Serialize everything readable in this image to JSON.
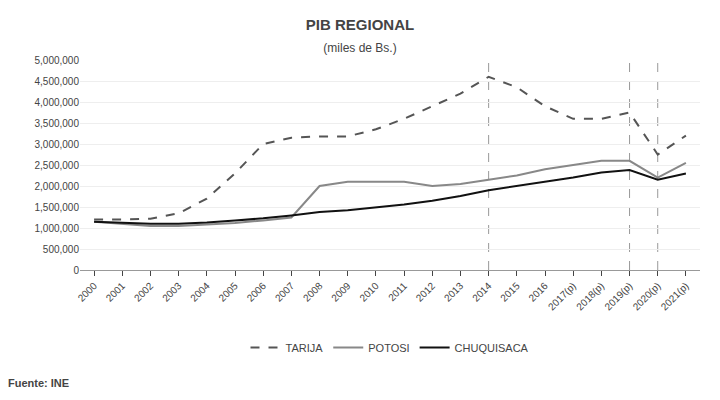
{
  "chart_data": {
    "type": "line",
    "title": "PIB REGIONAL",
    "subtitle": "(miles de Bs.)",
    "source": "Fuente: INE",
    "categories": [
      "2000",
      "2001",
      "2002",
      "2003",
      "2004",
      "2005",
      "2006",
      "2007",
      "2008",
      "2009",
      "2010",
      "2011",
      "2012",
      "2013",
      "2014",
      "2015",
      "2016",
      "2017(p)",
      "2018(p)",
      "2019(p)",
      "2020(p)",
      "2021(p)"
    ],
    "series": [
      {
        "name": "TARIJA",
        "color": "#555555",
        "line_style": "dashed",
        "values": [
          1200000,
          1200000,
          1220000,
          1350000,
          1700000,
          2300000,
          3000000,
          3150000,
          3180000,
          3180000,
          3350000,
          3600000,
          3900000,
          4200000,
          4600000,
          4350000,
          3900000,
          3600000,
          3600000,
          3750000,
          2750000,
          3200000
        ]
      },
      {
        "name": "POTOSI",
        "color": "#888888",
        "line_style": "solid",
        "values": [
          1150000,
          1100000,
          1050000,
          1050000,
          1080000,
          1120000,
          1180000,
          1250000,
          2000000,
          2100000,
          2100000,
          2100000,
          2000000,
          2050000,
          2150000,
          2250000,
          2400000,
          2500000,
          2600000,
          2600000,
          2200000,
          2550000
        ]
      },
      {
        "name": "CHUQUISACA",
        "color": "#111111",
        "line_style": "solid",
        "values": [
          1150000,
          1130000,
          1100000,
          1100000,
          1130000,
          1180000,
          1230000,
          1300000,
          1380000,
          1420000,
          1490000,
          1560000,
          1650000,
          1760000,
          1900000,
          2000000,
          2100000,
          2200000,
          2320000,
          2380000,
          2150000,
          2300000
        ]
      }
    ],
    "vlines": [
      "2014",
      "2019(p)",
      "2020(p)"
    ],
    "ylim": [
      0,
      5000000
    ],
    "yticks": [
      0,
      {
        "value": 500000,
        "label": "500,000"
      },
      {
        "value": 1000000,
        "label": "1,000,000"
      },
      {
        "value": 1500000,
        "label": "1,500,000"
      },
      {
        "value": 2000000,
        "label": "2,000,000"
      },
      {
        "value": 2500000,
        "label": "2,500,000"
      },
      {
        "value": 3000000,
        "label": "3,000,000"
      },
      {
        "value": 3500000,
        "label": "3,500,000"
      },
      {
        "value": 4000000,
        "label": "4,000,000"
      },
      {
        "value": 4500000,
        "label": "4,500,000"
      },
      {
        "value": 5000000,
        "label": "5,000,000"
      }
    ],
    "grid": true,
    "legend": "bottom"
  }
}
